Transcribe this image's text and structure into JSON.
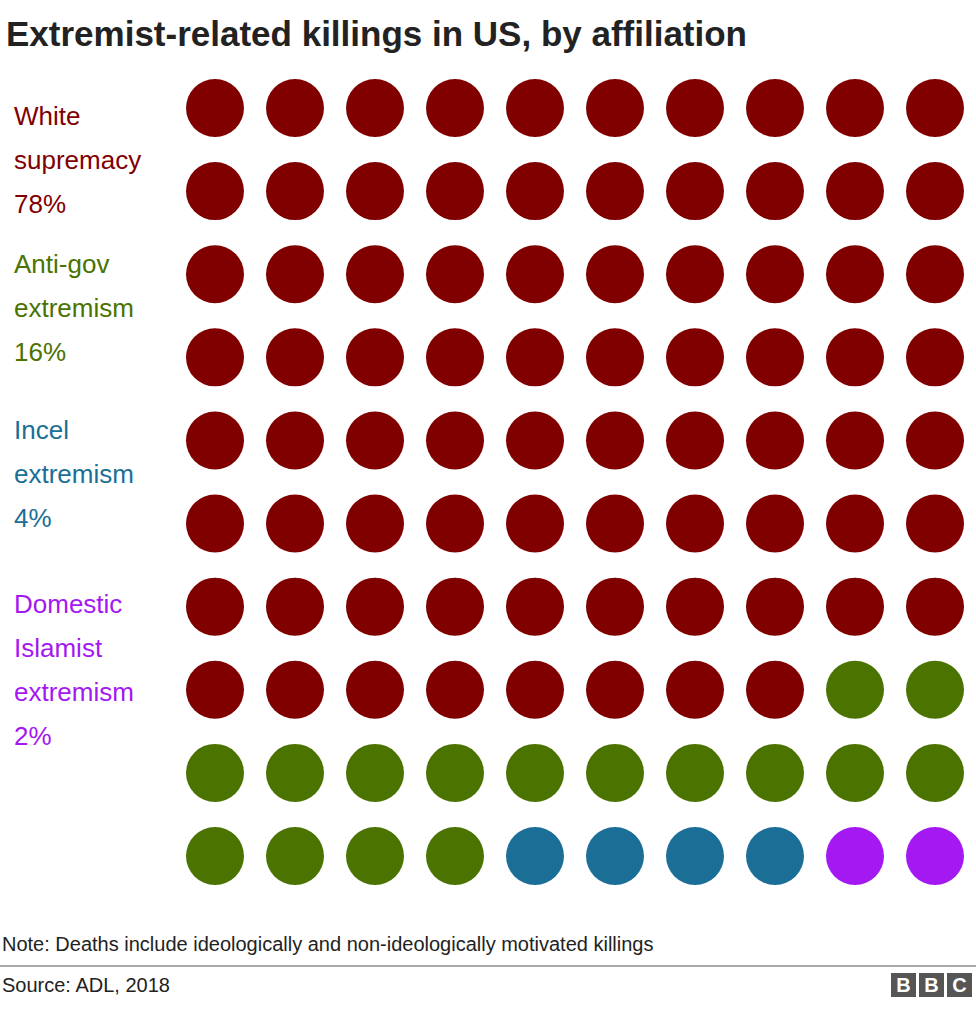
{
  "chart_data": {
    "type": "waffle",
    "title": "Extremist-related killings in US, by affiliation",
    "categories": [
      "White supremacy",
      "Anti-gov extremism",
      "Incel extremism",
      "Domestic Islamist extremism"
    ],
    "values": [
      78,
      16,
      4,
      2
    ],
    "value_labels": [
      "78%",
      "16%",
      "4%",
      "2%"
    ],
    "colors": [
      "#800000",
      "#4a7300",
      "#1b6f96",
      "#a418f2"
    ],
    "data_labels": true,
    "note": "Note: Deaths include ideologically and non-ideologically motivated killings",
    "source": "Source: ADL, 2018",
    "logo": "BBC"
  }
}
